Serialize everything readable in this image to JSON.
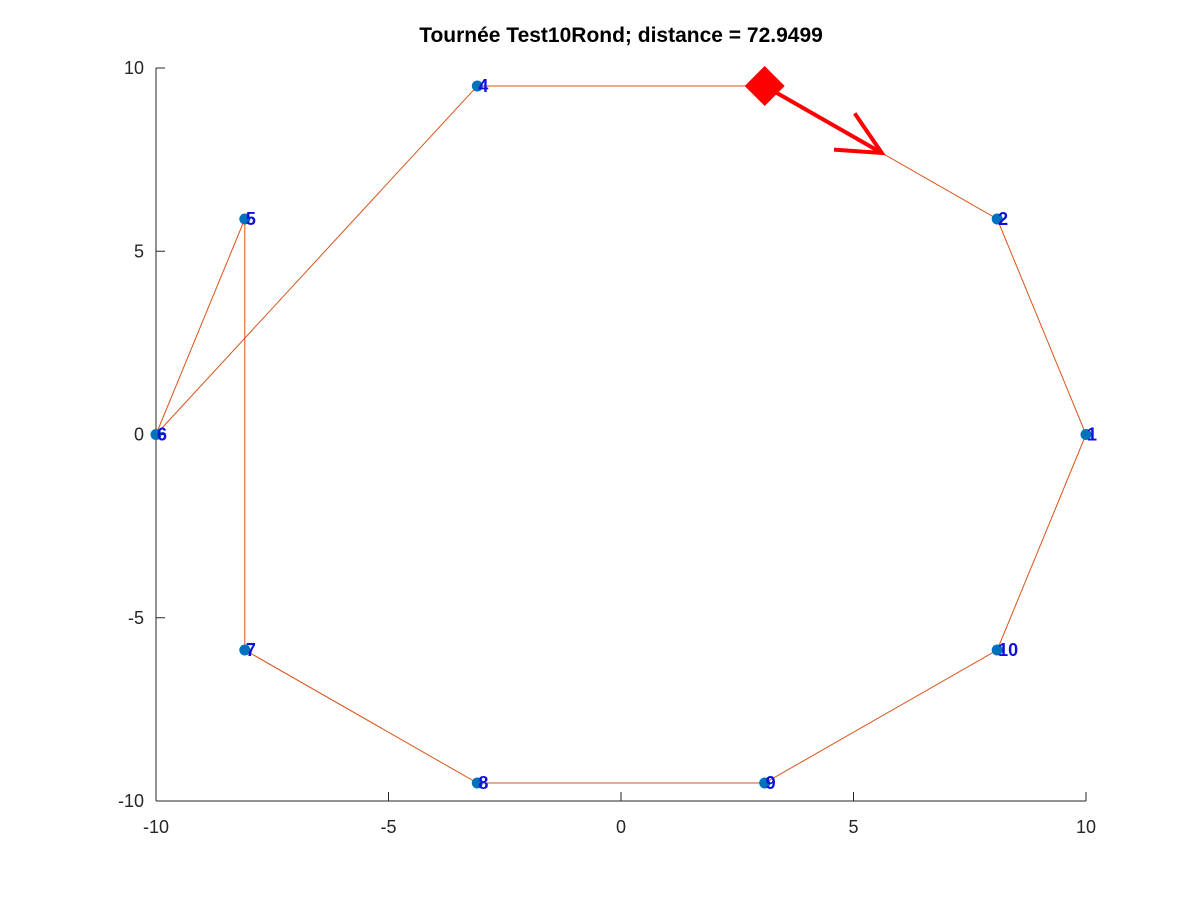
{
  "chart_data": {
    "type": "scatter",
    "title": "Tournée Test10Rond; distance = 72.9499",
    "xlabel": "",
    "ylabel": "",
    "xlim": [
      -10,
      10
    ],
    "ylim": [
      -10,
      10
    ],
    "xticks": [
      -10,
      -5,
      0,
      5,
      10
    ],
    "yticks": [
      -10,
      -5,
      0,
      5,
      10
    ],
    "grid": false,
    "cities": [
      {
        "label": "1",
        "x": 10,
        "y": 0
      },
      {
        "label": "2",
        "x": 8.09,
        "y": 5.88
      },
      {
        "label": "3",
        "x": 3.09,
        "y": 9.51
      },
      {
        "label": "4",
        "x": -3.09,
        "y": 9.51
      },
      {
        "label": "5",
        "x": -8.09,
        "y": 5.88
      },
      {
        "label": "6",
        "x": -10,
        "y": 0
      },
      {
        "label": "7",
        "x": -8.09,
        "y": -5.88
      },
      {
        "label": "8",
        "x": -3.09,
        "y": -9.51
      },
      {
        "label": "9",
        "x": 3.09,
        "y": -9.51
      },
      {
        "label": "10",
        "x": 8.09,
        "y": -5.88
      }
    ],
    "route": [
      "3",
      "2",
      "1",
      "10",
      "9",
      "8",
      "7",
      "5",
      "6",
      "4",
      "3"
    ],
    "start_city": "3",
    "colors": {
      "point": "#0072bd",
      "route": "#d95319",
      "label": "#1010d8",
      "start_marker": "#ff0000"
    }
  }
}
